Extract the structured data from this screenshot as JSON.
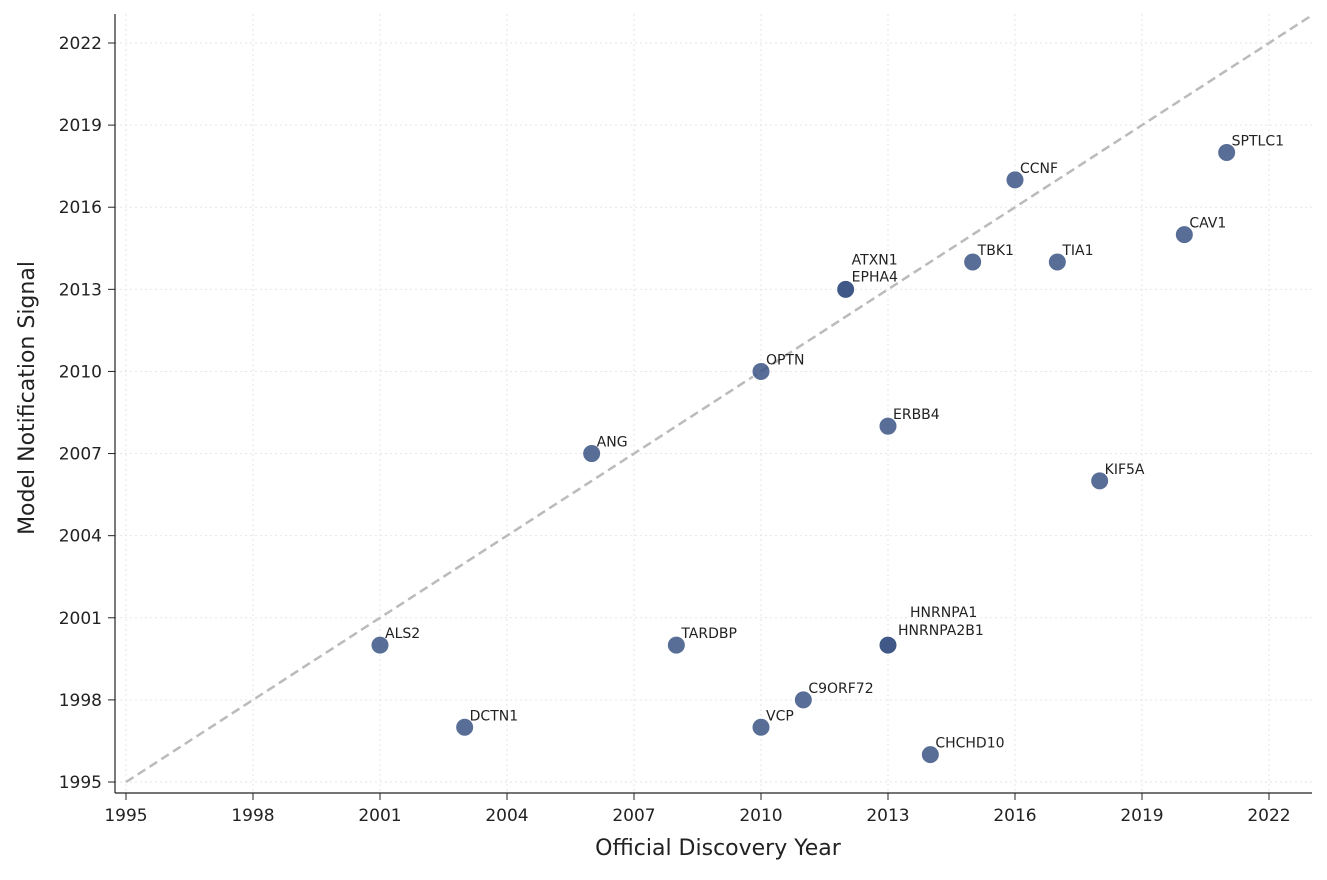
{
  "chart_data": {
    "type": "scatter",
    "title": "",
    "xlabel": "Official Discovery Year",
    "ylabel": "Model Notification Signal",
    "xlim": [
      1994.75,
      2022.97
    ],
    "ylim": [
      1994.6,
      2023.06
    ],
    "xticks": [
      1995,
      1998,
      2001,
      2004,
      2007,
      2010,
      2013,
      2016,
      2019,
      2022
    ],
    "yticks": [
      1995,
      1998,
      2001,
      2004,
      2007,
      2010,
      2013,
      2016,
      2019,
      2022
    ],
    "grid": true,
    "reference_line": "y = x (dashed, gray)",
    "colors": {
      "point": "#3b5585",
      "reference_line": "#bbbbbb"
    },
    "points": [
      {
        "label": "ALS2",
        "x": 2001,
        "y": 2000
      },
      {
        "label": "DCTN1",
        "x": 2003,
        "y": 1997
      },
      {
        "label": "ANG",
        "x": 2006,
        "y": 2007
      },
      {
        "label": "TARDBP",
        "x": 2008,
        "y": 2000
      },
      {
        "label": "OPTN",
        "x": 2010,
        "y": 2010
      },
      {
        "label": "VCP",
        "x": 2010,
        "y": 1997
      },
      {
        "label": "C9ORF72",
        "x": 2011,
        "y": 1998
      },
      {
        "label": "ATXN1",
        "x": 2012,
        "y": 2013
      },
      {
        "label": "EPHA4",
        "x": 2012,
        "y": 2013
      },
      {
        "label": "ERBB4",
        "x": 2013,
        "y": 2008
      },
      {
        "label": "HNRNPA1",
        "x": 2013,
        "y": 2000
      },
      {
        "label": "HNRNPA2B1",
        "x": 2013,
        "y": 2000
      },
      {
        "label": "CHCHD10",
        "x": 2014,
        "y": 1996
      },
      {
        "label": "TBK1",
        "x": 2015,
        "y": 2014
      },
      {
        "label": "CCNF",
        "x": 2016,
        "y": 2017
      },
      {
        "label": "TIA1",
        "x": 2017,
        "y": 2014
      },
      {
        "label": "KIF5A",
        "x": 2018,
        "y": 2006
      },
      {
        "label": "CAV1",
        "x": 2020,
        "y": 2015
      },
      {
        "label": "SPTLC1",
        "x": 2021,
        "y": 2018
      }
    ]
  }
}
